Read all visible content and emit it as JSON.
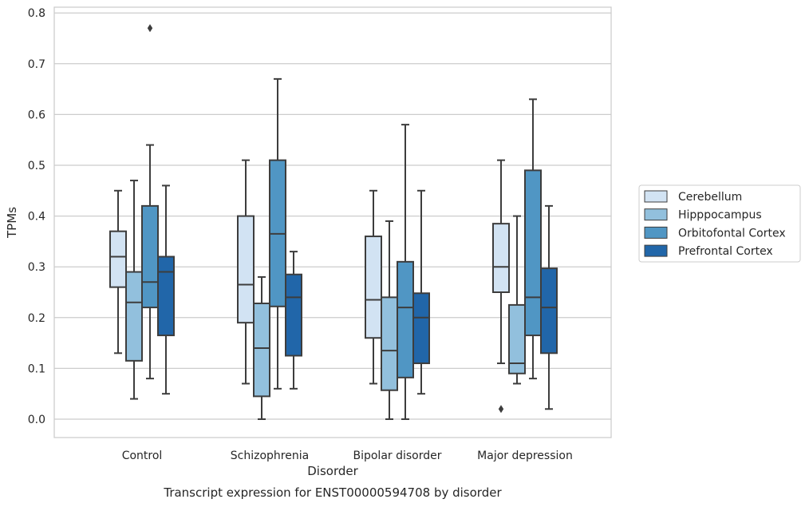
{
  "chart_data": {
    "type": "box",
    "caption": "Transcript expression for ENST00000594708 by disorder",
    "xlabel": "Disorder",
    "ylabel": "TPMs",
    "ylim": [
      -0.04,
      0.81
    ],
    "yticks": [
      0.0,
      0.1,
      0.2,
      0.3,
      0.4,
      0.5,
      0.6,
      0.7,
      0.8
    ],
    "ytick_labels": [
      "0.0",
      "0.1",
      "0.2",
      "0.3",
      "0.4",
      "0.5",
      "0.6",
      "0.7",
      "0.8"
    ],
    "grid": "horizontal",
    "legend_position": "right",
    "categories": [
      "Control",
      "Schizophrenia",
      "Bipolar disorder",
      "Major depression"
    ],
    "series": [
      {
        "name": "Cerebellum",
        "color": "#d2e3f3",
        "boxes": [
          {
            "whislo": 0.13,
            "q1": 0.26,
            "med": 0.32,
            "q3": 0.37,
            "whishi": 0.45,
            "fliers": []
          },
          {
            "whislo": 0.07,
            "q1": 0.19,
            "med": 0.265,
            "q3": 0.4,
            "whishi": 0.51,
            "fliers": []
          },
          {
            "whislo": 0.07,
            "q1": 0.16,
            "med": 0.235,
            "q3": 0.36,
            "whishi": 0.45,
            "fliers": []
          },
          {
            "whislo": 0.11,
            "q1": 0.25,
            "med": 0.3,
            "q3": 0.385,
            "whishi": 0.51,
            "fliers": [
              0.02
            ]
          }
        ]
      },
      {
        "name": "Hipppocampus",
        "color": "#92c0dd",
        "boxes": [
          {
            "whislo": 0.04,
            "q1": 0.115,
            "med": 0.23,
            "q3": 0.29,
            "whishi": 0.47,
            "fliers": []
          },
          {
            "whislo": 0.0,
            "q1": 0.045,
            "med": 0.14,
            "q3": 0.228,
            "whishi": 0.28,
            "fliers": []
          },
          {
            "whislo": 0.0,
            "q1": 0.057,
            "med": 0.135,
            "q3": 0.24,
            "whishi": 0.39,
            "fliers": []
          },
          {
            "whislo": 0.07,
            "q1": 0.09,
            "med": 0.11,
            "q3": 0.225,
            "whishi": 0.4,
            "fliers": []
          }
        ]
      },
      {
        "name": "Orbitofontal Cortex",
        "color": "#5096c4",
        "boxes": [
          {
            "whislo": 0.08,
            "q1": 0.22,
            "med": 0.27,
            "q3": 0.42,
            "whishi": 0.54,
            "fliers": [
              0.77
            ]
          },
          {
            "whislo": 0.06,
            "q1": 0.222,
            "med": 0.365,
            "q3": 0.51,
            "whishi": 0.67,
            "fliers": []
          },
          {
            "whislo": 0.0,
            "q1": 0.082,
            "med": 0.22,
            "q3": 0.31,
            "whishi": 0.58,
            "fliers": []
          },
          {
            "whislo": 0.08,
            "q1": 0.165,
            "med": 0.24,
            "q3": 0.49,
            "whishi": 0.63,
            "fliers": []
          }
        ]
      },
      {
        "name": "Prefrontal Cortex",
        "color": "#2166a9",
        "boxes": [
          {
            "whislo": 0.05,
            "q1": 0.165,
            "med": 0.29,
            "q3": 0.32,
            "whishi": 0.46,
            "fliers": []
          },
          {
            "whislo": 0.06,
            "q1": 0.125,
            "med": 0.24,
            "q3": 0.285,
            "whishi": 0.33,
            "fliers": []
          },
          {
            "whislo": 0.05,
            "q1": 0.11,
            "med": 0.2,
            "q3": 0.248,
            "whishi": 0.45,
            "fliers": []
          },
          {
            "whislo": 0.02,
            "q1": 0.13,
            "med": 0.22,
            "q3": 0.297,
            "whishi": 0.42,
            "fliers": []
          }
        ]
      }
    ]
  }
}
